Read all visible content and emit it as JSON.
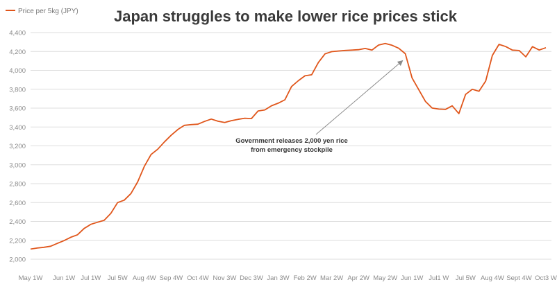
{
  "chart_data": {
    "type": "line",
    "title": "Japan struggles to make lower rice prices stick",
    "legend": "Price per 5kg (JPY)",
    "ylim": [
      2000,
      4400
    ],
    "yticks": [
      2000,
      2200,
      2400,
      2600,
      2800,
      3000,
      3200,
      3400,
      3600,
      3800,
      4000,
      4200,
      4400
    ],
    "ytick_labels": [
      "2,000",
      "2,200",
      "2,400",
      "2,600",
      "2,800",
      "3,000",
      "3,200",
      "3,400",
      "3,600",
      "3,800",
      "4,000",
      "4,200",
      "4,400"
    ],
    "xticks": [
      {
        "label": "May 1W",
        "index": 0
      },
      {
        "label": "Jun 1W",
        "index": 5
      },
      {
        "label": "Jul 1W",
        "index": 9
      },
      {
        "label": "Jul 5W",
        "index": 13
      },
      {
        "label": "Aug 4W",
        "index": 17
      },
      {
        "label": "Sep 4W",
        "index": 21
      },
      {
        "label": "Oct 4W",
        "index": 25
      },
      {
        "label": "Nov 3W",
        "index": 29
      },
      {
        "label": "Dec 3W",
        "index": 33
      },
      {
        "label": "Jan 3W",
        "index": 37
      },
      {
        "label": "Feb 2W",
        "index": 41
      },
      {
        "label": "Mar 2W",
        "index": 45
      },
      {
        "label": "Apr 2W",
        "index": 49
      },
      {
        "label": "May 2W",
        "index": 53
      },
      {
        "label": "Jun 1W",
        "index": 57
      },
      {
        "label": "Jul1 W",
        "index": 61
      },
      {
        "label": "Jul 5W",
        "index": 65
      },
      {
        "label": "Aug 4W",
        "index": 69
      },
      {
        "label": "Sept 4W",
        "index": 73
      },
      {
        "label": "Oct3 W",
        "index": 77
      }
    ],
    "series": [
      {
        "name": "Price per 5kg (JPY)",
        "color": "#e0561b",
        "values": [
          2107,
          2118,
          2126,
          2137,
          2167,
          2197,
          2232,
          2258,
          2325,
          2369,
          2391,
          2412,
          2485,
          2600,
          2625,
          2695,
          2818,
          2983,
          3109,
          3165,
          3242,
          3312,
          3373,
          3418,
          3425,
          3430,
          3459,
          3484,
          3461,
          3448,
          3467,
          3481,
          3493,
          3489,
          3570,
          3581,
          3625,
          3652,
          3688,
          3829,
          3890,
          3942,
          3953,
          4083,
          4175,
          4198,
          4205,
          4211,
          4214,
          4219,
          4232,
          4214,
          4268,
          4285,
          4266,
          4234,
          4176,
          3920,
          3796,
          3672,
          3601,
          3590,
          3587,
          3624,
          3542,
          3745,
          3800,
          3778,
          3886,
          4158,
          4275,
          4252,
          4214,
          4210,
          4143,
          4251,
          4215,
          4240
        ]
      }
    ],
    "annotation": {
      "lines": [
        "Government releases 2,000 yen rice",
        "from emergency stockpile"
      ],
      "target_index": 56
    }
  }
}
